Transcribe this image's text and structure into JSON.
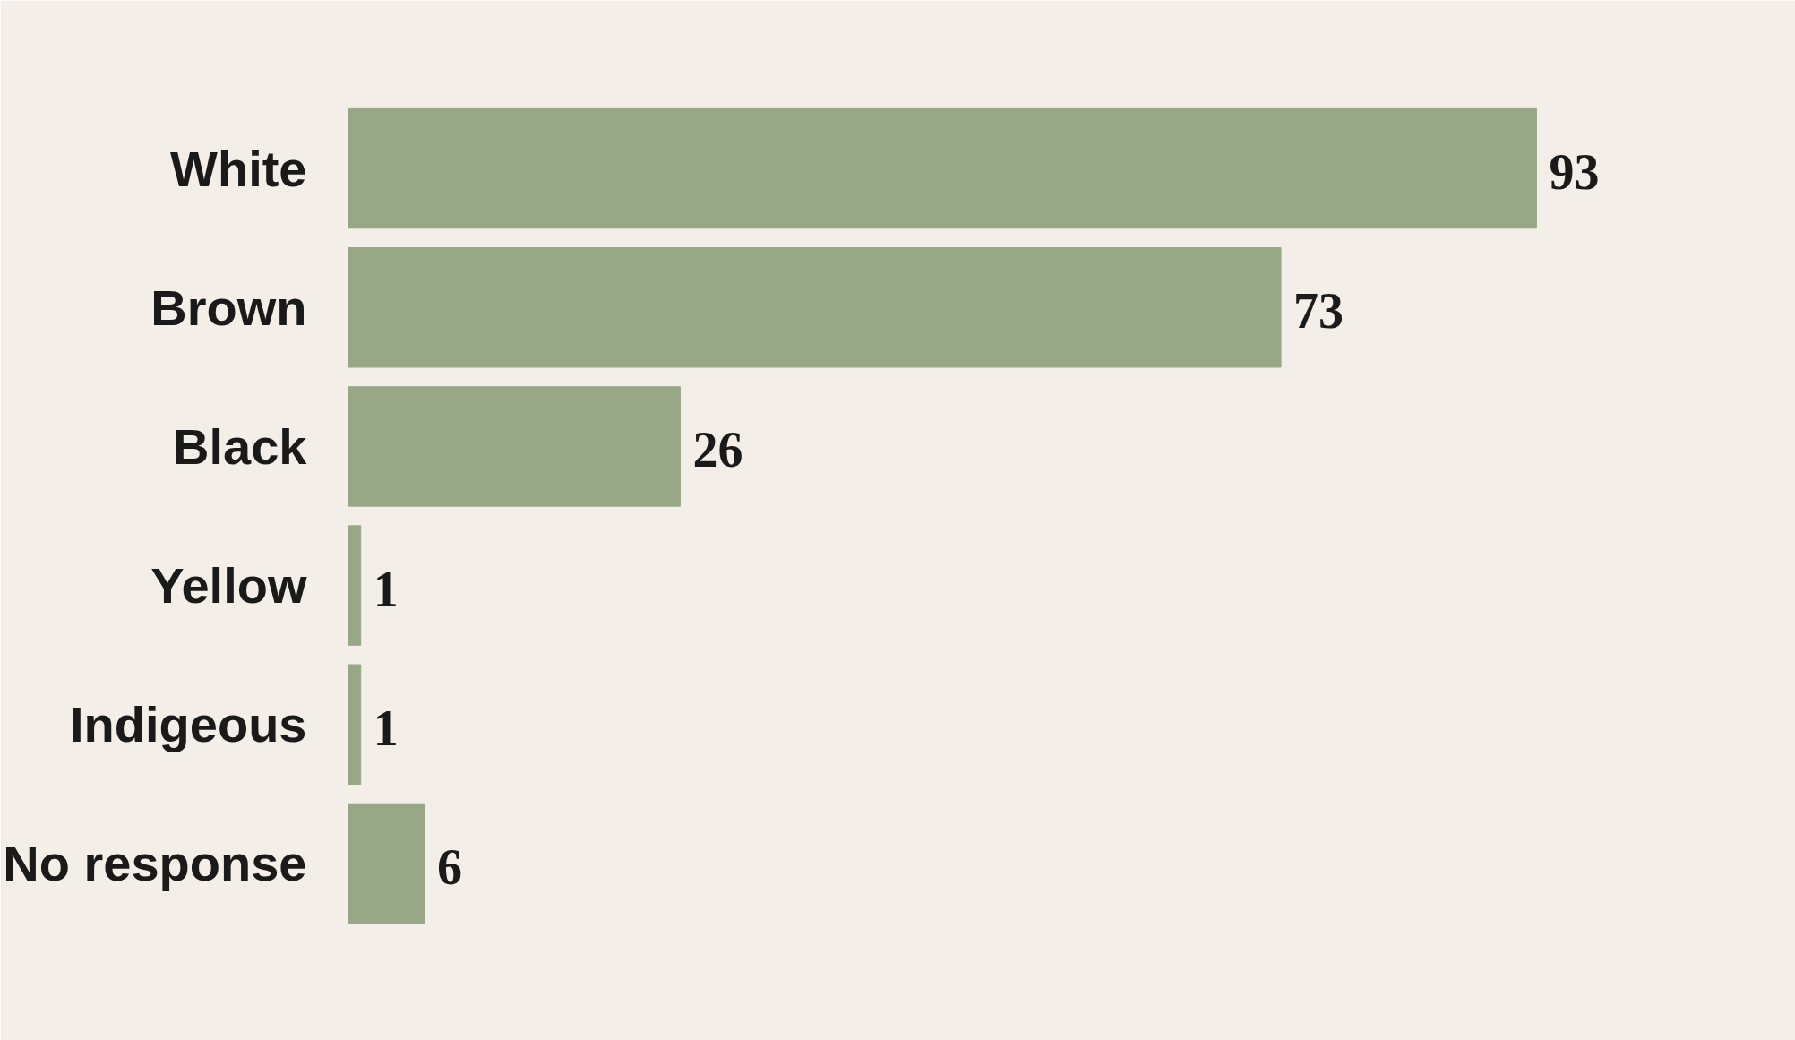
{
  "chart_data": {
    "type": "bar",
    "orientation": "horizontal",
    "categories": [
      "White",
      "Brown",
      "Black",
      "Yellow",
      "Indigeous",
      "No response"
    ],
    "values": [
      93,
      73,
      26,
      1,
      1,
      6
    ],
    "color": "#98a886",
    "data_labels": true,
    "grid": false
  }
}
